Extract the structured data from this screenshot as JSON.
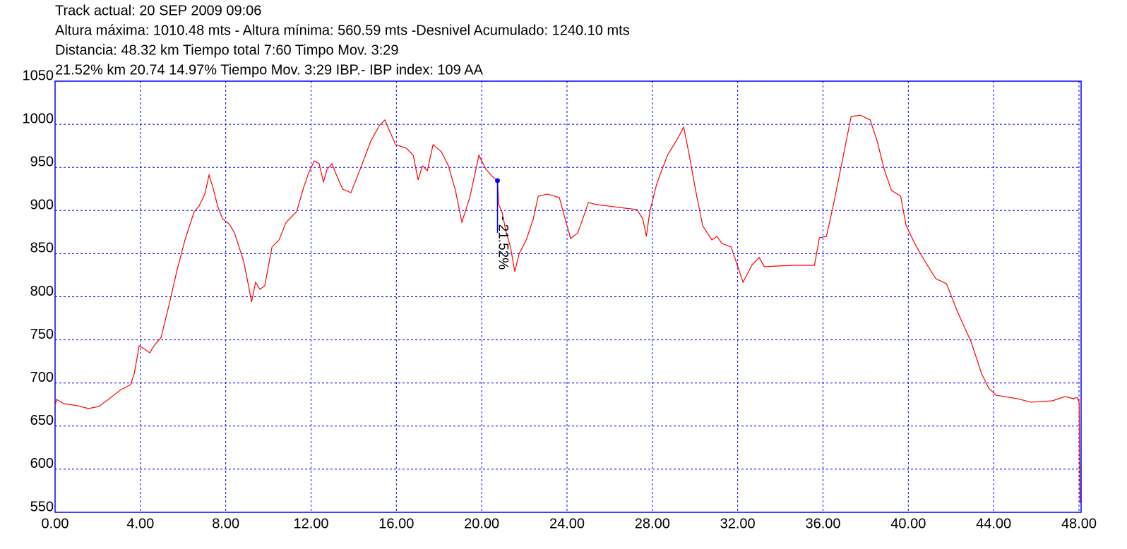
{
  "chart_data": {
    "type": "line",
    "title_lines": [
      "Track actual: 20 SEP 2009 09:06",
      "Altura máxima: 1010.48 mts - Altura mínima: 560.59 mts -Desnivel Acumulado: 1240.10 mts",
      "Distancia: 48.32 km  Tiempo total 7:60 Timpo Mov. 3:29",
      "21.52% km 20.74  14.97%  Tiempo Mov. 3:29 IBP.- IBP index: 109 AA"
    ],
    "x": [
      0,
      0.07,
      0.4,
      1.06,
      1.56,
      2.05,
      2.55,
      3.05,
      3.54,
      3.71,
      3.94,
      4.21,
      4.44,
      4.64,
      4.97,
      5.36,
      5.7,
      6.09,
      6.52,
      6.75,
      7.02,
      7.22,
      7.42,
      7.62,
      7.85,
      8.18,
      8.41,
      8.84,
      9.07,
      9.21,
      9.4,
      9.6,
      9.83,
      10.17,
      10.5,
      10.83,
      11.32,
      11.66,
      11.89,
      12.15,
      12.38,
      12.58,
      12.75,
      12.98,
      13.15,
      13.48,
      13.87,
      14.3,
      14.8,
      15.2,
      15.46,
      15.63,
      15.96,
      16.46,
      16.79,
      17.02,
      17.22,
      17.45,
      17.72,
      18.11,
      18.44,
      18.77,
      19.07,
      19.44,
      19.87,
      20.2,
      20.5,
      20.74,
      20.8,
      20.95,
      21.15,
      21.35,
      21.55,
      21.75,
      22.09,
      22.42,
      22.65,
      23.08,
      23.64,
      23.91,
      24.17,
      24.5,
      24.74,
      25.0,
      25.4,
      26.23,
      26.72,
      27.28,
      27.55,
      27.72,
      27.88,
      28.21,
      28.71,
      29.21,
      29.47,
      29.7,
      30.03,
      30.36,
      30.79,
      31.03,
      31.26,
      31.69,
      31.92,
      32.25,
      32.68,
      33.01,
      33.25,
      33.84,
      34.67,
      35.6,
      35.83,
      36.16,
      36.49,
      36.99,
      37.32,
      37.75,
      38.21,
      38.54,
      38.87,
      39.21,
      39.64,
      39.9,
      40.3,
      40.73,
      41.29,
      41.79,
      42.28,
      42.95,
      43.44,
      43.77,
      44.11,
      45.1,
      45.76,
      46.75,
      47.35,
      47.75,
      47.91,
      48.01,
      48.05
    ],
    "series": [
      {
        "color": "#ff0000",
        "values": [
          673.6,
          680.9,
          676.0,
          673.6,
          670.3,
          672.7,
          681.8,
          691.6,
          698.1,
          710.4,
          743.1,
          739.0,
          734.9,
          743.1,
          752.9,
          792.2,
          829.1,
          865.9,
          898.6,
          905.2,
          919.1,
          941.2,
          924.8,
          905.2,
          890.4,
          883.9,
          874.1,
          841.3,
          812.7,
          793.9,
          816.8,
          808.6,
          812.7,
          857.7,
          865.9,
          886.3,
          898.6,
          927.3,
          943.6,
          957.5,
          954.3,
          933.0,
          947.7,
          954.3,
          943.6,
          924.8,
          920.7,
          947.7,
          980.4,
          998.4,
          1005.0,
          995.2,
          976.4,
          972.3,
          964.1,
          935.4,
          951.8,
          946.1,
          976.4,
          968.2,
          951.8,
          923.2,
          886.3,
          915.0,
          964.1,
          947.7,
          939.5,
          934.6,
          906.8,
          898.6,
          874.1,
          857.7,
          829.1,
          849.5,
          865.9,
          890.4,
          916.6,
          919.1,
          915.0,
          890.4,
          867.5,
          874.1,
          890.4,
          909.2,
          906.8,
          904.3,
          902.7,
          901.1,
          890.4,
          870.0,
          898.6,
          931.3,
          964.1,
          984.5,
          996.8,
          968.2,
          923.2,
          882.2,
          865.9,
          870.0,
          861.8,
          857.7,
          841.3,
          816.8,
          837.2,
          845.4,
          834.8,
          835.6,
          836.4,
          836.4,
          868.3,
          870.0,
          906.8,
          968.2,
          1009.1,
          1010.5,
          1005.0,
          980.4,
          947.7,
          923.2,
          916.6,
          882.2,
          861.8,
          843.0,
          820.9,
          815.1,
          784.0,
          747.2,
          710.4,
          694.0,
          685.8,
          681.8,
          677.7,
          679.3,
          684.2,
          681.8,
          683.4,
          677.7,
          560.6
        ]
      }
    ],
    "annotation": {
      "x": 20.74,
      "y": 934.6,
      "y_end": 874,
      "label": "- 21.52%",
      "color": "#0000ff"
    },
    "xlim": [
      0,
      48.1
    ],
    "ylim": [
      550,
      1050
    ],
    "xticks": [
      {
        "value": 0,
        "label": "0.00"
      },
      {
        "value": 4,
        "label": "4.00"
      },
      {
        "value": 8,
        "label": "8.00"
      },
      {
        "value": 12,
        "label": "12.00"
      },
      {
        "value": 16,
        "label": "16.00"
      },
      {
        "value": 20,
        "label": "20.00"
      },
      {
        "value": 24,
        "label": "24.00"
      },
      {
        "value": 28,
        "label": "28.00"
      },
      {
        "value": 32,
        "label": "32.00"
      },
      {
        "value": 36,
        "label": "36.00"
      },
      {
        "value": 40,
        "label": "40.00"
      },
      {
        "value": 44,
        "label": "44.00"
      },
      {
        "value": 48,
        "label": "48.00"
      }
    ],
    "yticks": [
      550,
      600,
      650,
      700,
      750,
      800,
      850,
      900,
      950,
      1000,
      1050
    ],
    "grid": true,
    "grid_color": "#0000ff",
    "frame_color": "#0000ff"
  }
}
